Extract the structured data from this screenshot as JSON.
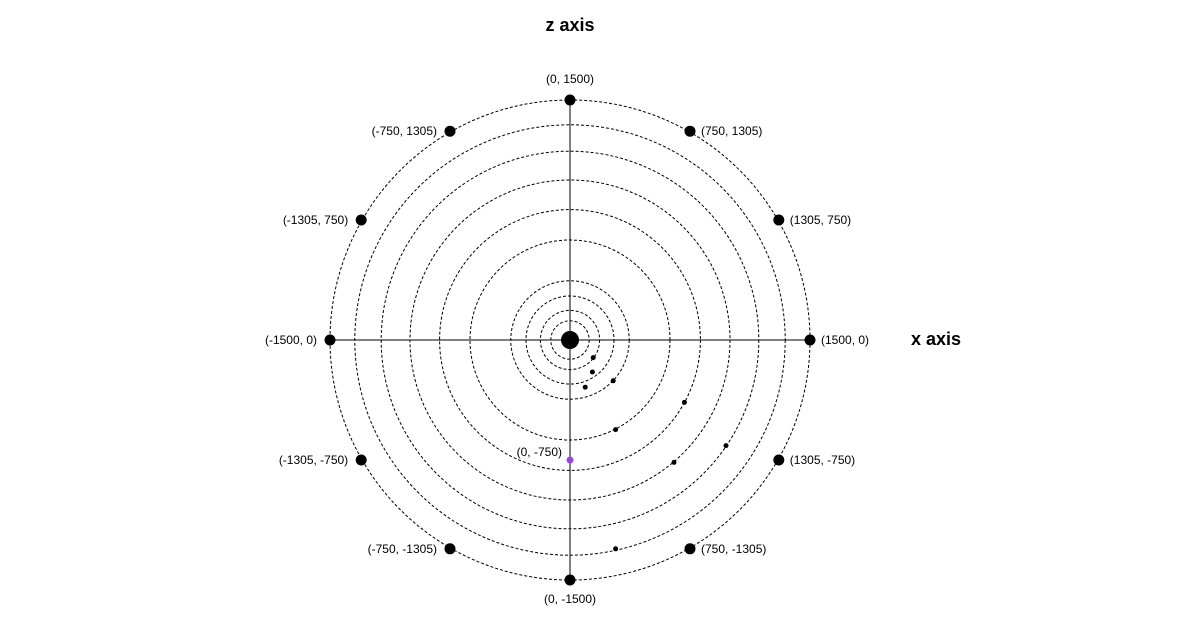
{
  "axes": {
    "z_title": "z axis",
    "x_title": "x axis"
  },
  "colors": {
    "ink": "#000000",
    "highlight": "#9b45e4"
  },
  "rings": [
    1500,
    1345,
    1180,
    1000,
    815,
    625,
    370,
    275,
    185,
    120
  ],
  "labeled_points": [
    {
      "x": 0,
      "z": 1500,
      "label": "(0, 1500)",
      "anchor": "top"
    },
    {
      "x": 750,
      "z": 1305,
      "label": "(750, 1305)",
      "anchor": "right"
    },
    {
      "x": 1305,
      "z": 750,
      "label": "(1305, 750)",
      "anchor": "right"
    },
    {
      "x": 1500,
      "z": 0,
      "label": "(1500, 0)",
      "anchor": "right"
    },
    {
      "x": 1305,
      "z": -750,
      "label": "(1305, -750)",
      "anchor": "right"
    },
    {
      "x": 750,
      "z": -1305,
      "label": "(750, -1305)",
      "anchor": "right"
    },
    {
      "x": 0,
      "z": -1500,
      "label": "(0, -1500)",
      "anchor": "bottom"
    },
    {
      "x": -750,
      "z": -1305,
      "label": "(-750, -1305)",
      "anchor": "left"
    },
    {
      "x": -1305,
      "z": -750,
      "label": "(-1305, -750)",
      "anchor": "left"
    },
    {
      "x": -1500,
      "z": 0,
      "label": "(-1500, 0)",
      "anchor": "left"
    },
    {
      "x": -1305,
      "z": 750,
      "label": "(-1305, 750)",
      "anchor": "left"
    },
    {
      "x": -750,
      "z": 1305,
      "label": "(-750, 1305)",
      "anchor": "left"
    },
    {
      "x": 0,
      "z": -750,
      "label": "(0, -750)",
      "anchor": "topleft",
      "highlight": true
    }
  ],
  "center_point": {
    "x": 0,
    "z": 0
  },
  "small_points": [
    {
      "x": 145,
      "z": -110
    },
    {
      "x": 140,
      "z": -200
    },
    {
      "x": 270,
      "z": -255
    },
    {
      "x": 95,
      "z": -295
    },
    {
      "x": 285,
      "z": -560
    },
    {
      "x": 715,
      "z": -390
    },
    {
      "x": 650,
      "z": -765
    },
    {
      "x": 975,
      "z": -660
    },
    {
      "x": 285,
      "z": -1305
    }
  ]
}
